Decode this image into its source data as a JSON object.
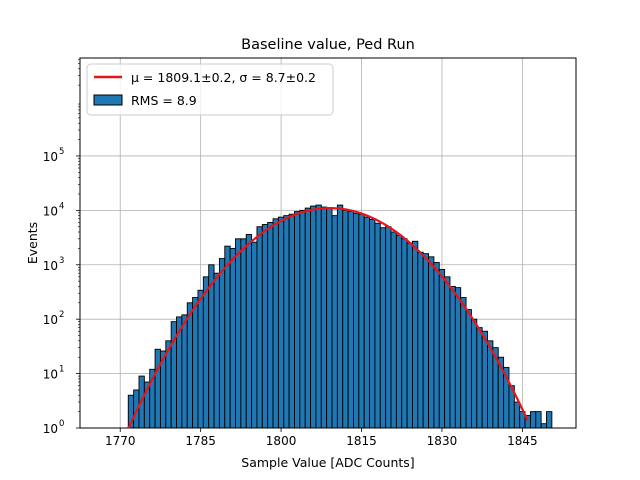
{
  "chart_data": {
    "type": "bar",
    "title": "Baseline value, Ped Run",
    "xlabel": "Sample Value [ADC Counts]",
    "ylabel": "Events",
    "xlim": [
      1762.5,
      1855
    ],
    "ylim_log10": [
      0,
      6.8
    ],
    "yscale": "log",
    "grid": true,
    "legend_position": "upper-left",
    "x_ticks": [
      1770,
      1785,
      1800,
      1815,
      1830,
      1845
    ],
    "x_tick_labels": [
      "1770",
      "1785",
      "1800",
      "1815",
      "1830",
      "1845"
    ],
    "y_ticks_log10": [
      0,
      1,
      2,
      3,
      4,
      5
    ],
    "y_tick_bases": [
      "10",
      "10",
      "10",
      "10",
      "10",
      "10"
    ],
    "y_tick_exponents": [
      "0",
      "1",
      "2",
      "3",
      "4",
      "5"
    ],
    "bin_width": 1,
    "bins": [
      [
        1772,
        4
      ],
      [
        1773,
        5
      ],
      [
        1774,
        9
      ],
      [
        1775,
        7
      ],
      [
        1776,
        12
      ],
      [
        1777,
        28
      ],
      [
        1778,
        26
      ],
      [
        1779,
        40
      ],
      [
        1780,
        90
      ],
      [
        1781,
        110
      ],
      [
        1782,
        120
      ],
      [
        1783,
        200
      ],
      [
        1784,
        250
      ],
      [
        1785,
        340
      ],
      [
        1786,
        600
      ],
      [
        1787,
        1000
      ],
      [
        1788,
        700
      ],
      [
        1789,
        1300
      ],
      [
        1790,
        2200
      ],
      [
        1791,
        2000
      ],
      [
        1792,
        3000
      ],
      [
        1793,
        3000
      ],
      [
        1794,
        3600
      ],
      [
        1795,
        2600
      ],
      [
        1796,
        5000
      ],
      [
        1797,
        5500
      ],
      [
        1798,
        6000
      ],
      [
        1799,
        7000
      ],
      [
        1800,
        7500
      ],
      [
        1801,
        8000
      ],
      [
        1802,
        8500
      ],
      [
        1803,
        9500
      ],
      [
        1804,
        10000
      ],
      [
        1805,
        11000
      ],
      [
        1806,
        12000
      ],
      [
        1807,
        12500
      ],
      [
        1808,
        11500
      ],
      [
        1809,
        11000
      ],
      [
        1810,
        8000
      ],
      [
        1811,
        12500
      ],
      [
        1812,
        10000
      ],
      [
        1813,
        9500
      ],
      [
        1814,
        8800
      ],
      [
        1815,
        8500
      ],
      [
        1816,
        7500
      ],
      [
        1817,
        6800
      ],
      [
        1818,
        5800
      ],
      [
        1819,
        4800
      ],
      [
        1820,
        5000
      ],
      [
        1821,
        4000
      ],
      [
        1822,
        3500
      ],
      [
        1823,
        3000
      ],
      [
        1824,
        2500
      ],
      [
        1825,
        2700
      ],
      [
        1826,
        1700
      ],
      [
        1827,
        1600
      ],
      [
        1828,
        1400
      ],
      [
        1829,
        1100
      ],
      [
        1830,
        820
      ],
      [
        1831,
        600
      ],
      [
        1832,
        400
      ],
      [
        1833,
        380
      ],
      [
        1834,
        250
      ],
      [
        1835,
        150
      ],
      [
        1836,
        100
      ],
      [
        1837,
        70
      ],
      [
        1838,
        60
      ],
      [
        1839,
        40
      ],
      [
        1840,
        30
      ],
      [
        1841,
        20
      ],
      [
        1842,
        13
      ],
      [
        1843,
        6
      ],
      [
        1844,
        3
      ],
      [
        1845,
        2
      ],
      [
        1846,
        1.7
      ],
      [
        1847,
        2
      ],
      [
        1848,
        2
      ],
      [
        1849,
        1.2
      ],
      [
        1850,
        2
      ]
    ],
    "bar_color": "#1f77b4",
    "bar_edge_color": "#000000",
    "fit": {
      "type": "gaussian",
      "mu": 1809.1,
      "sigma": 8.7,
      "amplitude": 11000,
      "x_range": [
        1771.5,
        1846
      ],
      "color": "#e8141c"
    },
    "legend": [
      {
        "label": "μ = 1809.1±0.2, σ = 8.7±0.2",
        "kind": "line",
        "color": "#e8141c"
      },
      {
        "label": "RMS = 8.9",
        "kind": "patch",
        "color": "#1f77b4"
      }
    ]
  }
}
